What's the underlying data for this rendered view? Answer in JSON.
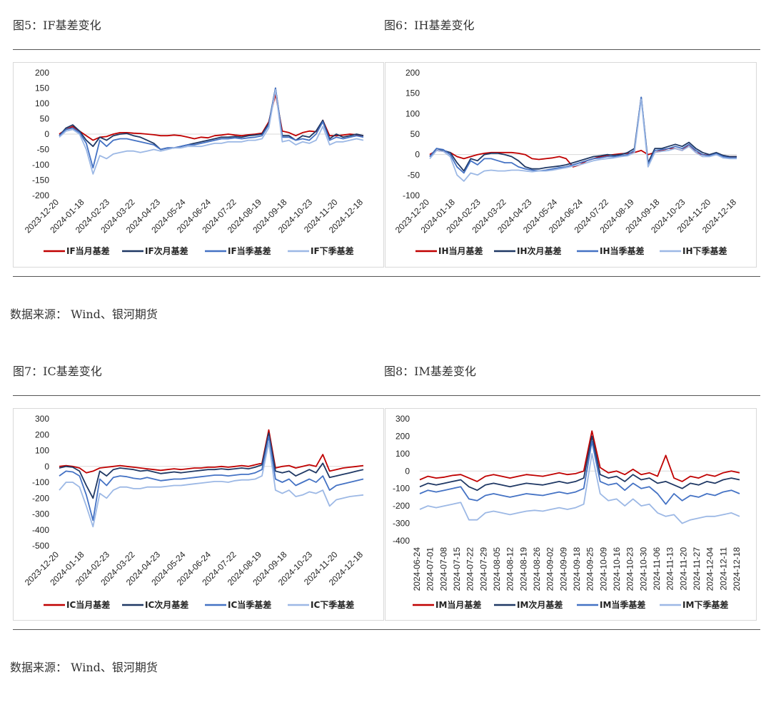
{
  "page": {
    "fig5_title": "图5：IF基差变化",
    "fig6_title": "图6：IH基差变化",
    "fig7_title": "图7：IC基差变化",
    "fig8_title": "图8：IM基差变化",
    "source_1": "数据来源： Wind、银河期货",
    "source_2": "数据来源： Wind、银河期货"
  },
  "chart_data": [
    {
      "id": "IF",
      "type": "line",
      "title": "图5：IF基差变化",
      "ylim": [
        -200,
        200
      ],
      "yticks": [
        "200",
        "150",
        "100",
        "50",
        "0",
        "-50",
        "-100",
        "-150",
        "-200"
      ],
      "xticks": [
        "2023-12-20",
        "2024-01-18",
        "2024-02-23",
        "2024-03-22",
        "2024-04-23",
        "2024-05-24",
        "2024-06-24",
        "2024-07-22",
        "2024-08-19",
        "2024-09-18",
        "2024-10-23",
        "2024-11-20",
        "2024-12-18"
      ],
      "legend": "bottom",
      "series": [
        {
          "name": "IF当月基差",
          "color": "#c00000",
          "values": [
            0,
            15,
            25,
            10,
            -5,
            -20,
            -10,
            -8,
            0,
            5,
            5,
            3,
            2,
            0,
            -2,
            -5,
            -5,
            -3,
            -5,
            -10,
            -15,
            -10,
            -12,
            -5,
            -3,
            0,
            -3,
            -5,
            -2,
            0,
            3,
            40,
            130,
            10,
            5,
            -5,
            5,
            10,
            8,
            45,
            -5,
            -5,
            -3,
            0,
            -2,
            -5
          ]
        },
        {
          "name": "IF次月基差",
          "color": "#1f3864",
          "values": [
            -5,
            20,
            30,
            10,
            -20,
            -40,
            -10,
            -20,
            -5,
            0,
            2,
            -5,
            -10,
            -20,
            -30,
            -50,
            -45,
            -45,
            -40,
            -35,
            -30,
            -25,
            -20,
            -15,
            -10,
            -10,
            -8,
            -10,
            -5,
            -3,
            0,
            35,
            150,
            -5,
            -5,
            -20,
            -5,
            -10,
            10,
            45,
            -15,
            0,
            -10,
            -5,
            0,
            -5
          ]
        },
        {
          "name": "IF当季基差",
          "color": "#4472c4",
          "values": [
            -5,
            15,
            20,
            5,
            -30,
            -110,
            -20,
            -40,
            -20,
            -15,
            -15,
            -20,
            -25,
            -30,
            -35,
            -50,
            -45,
            -45,
            -40,
            -35,
            -35,
            -30,
            -25,
            -20,
            -15,
            -15,
            -12,
            -15,
            -12,
            -10,
            -5,
            30,
            150,
            -10,
            -10,
            -20,
            -15,
            -20,
            0,
            40,
            -20,
            -10,
            -15,
            -10,
            -5,
            -10
          ]
        },
        {
          "name": "IF下季基差",
          "color": "#9cb8e5",
          "values": [
            -10,
            10,
            15,
            0,
            -50,
            -130,
            -70,
            -80,
            -65,
            -60,
            -55,
            -55,
            -60,
            -55,
            -50,
            -55,
            -50,
            -45,
            -45,
            -40,
            -40,
            -40,
            -35,
            -30,
            -30,
            -25,
            -25,
            -25,
            -20,
            -20,
            -15,
            20,
            145,
            -25,
            -20,
            -35,
            -25,
            -30,
            -20,
            25,
            -35,
            -25,
            -25,
            -20,
            -15,
            -20
          ]
        }
      ]
    },
    {
      "id": "IH",
      "type": "line",
      "title": "图6：IH基差变化",
      "ylim": [
        -100,
        200
      ],
      "yticks": [
        "200",
        "150",
        "100",
        "50",
        "0",
        "-50",
        "-100"
      ],
      "xticks": [
        "2023-12-20",
        "2024-01-18",
        "2024-02-23",
        "2024-03-22",
        "2024-04-23",
        "2024-05-24",
        "2024-06-24",
        "2024-07-22",
        "2024-08-19",
        "2024-09-18",
        "2024-10-23",
        "2024-11-20",
        "2024-12-18"
      ],
      "legend": "bottom",
      "series": [
        {
          "name": "IH当月基差",
          "color": "#c00000",
          "values": [
            0,
            10,
            8,
            5,
            -5,
            -10,
            -5,
            0,
            3,
            5,
            5,
            5,
            5,
            3,
            0,
            -10,
            -12,
            -10,
            -8,
            -5,
            -10,
            -30,
            -25,
            -15,
            -10,
            -5,
            -2,
            0,
            2,
            3,
            5,
            10,
            0,
            5,
            10,
            15,
            15,
            10,
            25,
            5,
            0,
            -2,
            0,
            -3,
            -5,
            -5
          ]
        },
        {
          "name": "IH次月基差",
          "color": "#1f3864",
          "values": [
            -5,
            15,
            10,
            5,
            -20,
            -40,
            -10,
            -15,
            0,
            3,
            3,
            0,
            -5,
            -15,
            -30,
            -35,
            -35,
            -32,
            -30,
            -28,
            -25,
            -20,
            -15,
            -10,
            -5,
            -3,
            0,
            -2,
            0,
            5,
            15,
            140,
            -20,
            15,
            15,
            20,
            25,
            20,
            30,
            15,
            5,
            0,
            5,
            -2,
            -5,
            -5
          ]
        },
        {
          "name": "IH当季基差",
          "color": "#4472c4",
          "values": [
            -5,
            15,
            12,
            0,
            -30,
            -45,
            -15,
            -25,
            -10,
            -10,
            -15,
            -20,
            -20,
            -30,
            -35,
            -38,
            -40,
            -38,
            -35,
            -32,
            -30,
            -25,
            -20,
            -15,
            -10,
            -8,
            -5,
            -5,
            -3,
            0,
            10,
            140,
            -25,
            10,
            12,
            15,
            20,
            15,
            25,
            10,
            0,
            -3,
            2,
            -5,
            -8,
            -8
          ]
        },
        {
          "name": "IH下季基差",
          "color": "#9cb8e5",
          "values": [
            -10,
            10,
            8,
            -5,
            -50,
            -65,
            -45,
            -50,
            -40,
            -38,
            -40,
            -40,
            -38,
            -38,
            -40,
            -42,
            -40,
            -40,
            -38,
            -35,
            -32,
            -28,
            -25,
            -20,
            -15,
            -12,
            -10,
            -8,
            -5,
            -3,
            5,
            135,
            -30,
            5,
            8,
            10,
            15,
            10,
            20,
            5,
            -5,
            -5,
            0,
            -8,
            -10,
            -10
          ]
        }
      ]
    },
    {
      "id": "IC",
      "type": "line",
      "title": "图7：IC基差变化",
      "ylim": [
        -500,
        300
      ],
      "yticks": [
        "300",
        "200",
        "100",
        "0",
        "-100",
        "-200",
        "-300",
        "-400",
        "-500"
      ],
      "xticks": [
        "2023-12-20",
        "2024-01-18",
        "2024-02-23",
        "2024-03-22",
        "2024-04-23",
        "2024-05-24",
        "2024-06-24",
        "2024-07-22",
        "2024-08-19",
        "2024-09-18",
        "2024-10-23",
        "2024-11-20",
        "2024-12-18"
      ],
      "legend": "bottom",
      "series": [
        {
          "name": "IC当月基差",
          "color": "#c00000",
          "values": [
            0,
            5,
            0,
            -10,
            -40,
            -30,
            -10,
            -5,
            0,
            5,
            0,
            -5,
            -10,
            -15,
            -20,
            -25,
            -20,
            -15,
            -20,
            -15,
            -10,
            -10,
            -5,
            -5,
            0,
            -5,
            0,
            5,
            0,
            10,
            20,
            230,
            -10,
            0,
            5,
            -10,
            0,
            10,
            0,
            75,
            -30,
            -20,
            -10,
            -5,
            0,
            5
          ]
        },
        {
          "name": "IC次月基差",
          "color": "#1f3864",
          "values": [
            -10,
            0,
            -5,
            -30,
            -120,
            -200,
            -30,
            -60,
            -20,
            -10,
            -15,
            -20,
            -30,
            -25,
            -35,
            -45,
            -40,
            -35,
            -40,
            -35,
            -30,
            -25,
            -20,
            -20,
            -15,
            -20,
            -15,
            -10,
            -15,
            -5,
            10,
            210,
            -30,
            -40,
            -30,
            -60,
            -40,
            -20,
            -40,
            20,
            -70,
            -60,
            -50,
            -40,
            -30,
            -20
          ]
        },
        {
          "name": "IC当季基差",
          "color": "#4472c4",
          "values": [
            -60,
            -30,
            -35,
            -60,
            -180,
            -340,
            -80,
            -120,
            -70,
            -60,
            -65,
            -75,
            -80,
            -70,
            -80,
            -90,
            -85,
            -80,
            -80,
            -75,
            -70,
            -65,
            -60,
            -55,
            -55,
            -60,
            -55,
            -50,
            -50,
            -40,
            -20,
            190,
            -80,
            -100,
            -80,
            -120,
            -100,
            -80,
            -100,
            -60,
            -150,
            -120,
            -110,
            -100,
            -90,
            -80
          ]
        },
        {
          "name": "IC下季基差",
          "color": "#9cb8e5",
          "values": [
            -150,
            -100,
            -100,
            -130,
            -250,
            -380,
            -170,
            -200,
            -150,
            -130,
            -130,
            -140,
            -140,
            -130,
            -130,
            -130,
            -125,
            -120,
            -120,
            -115,
            -110,
            -105,
            -100,
            -95,
            -95,
            -100,
            -90,
            -85,
            -85,
            -80,
            -60,
            150,
            -150,
            -170,
            -150,
            -190,
            -180,
            -160,
            -170,
            -150,
            -250,
            -210,
            -200,
            -190,
            -185,
            -180
          ]
        }
      ]
    },
    {
      "id": "IM",
      "type": "line",
      "title": "图8：IM基差变化",
      "ylim": [
        -400,
        300
      ],
      "yticks": [
        "300",
        "200",
        "100",
        "0",
        "-100",
        "-200",
        "-300",
        "-400"
      ],
      "xticks": [
        "2024-06-24",
        "2024-07-01",
        "2024-07-08",
        "2024-07-15",
        "2024-07-22",
        "2024-07-29",
        "2024-08-05",
        "2024-08-12",
        "2024-08-19",
        "2024-08-26",
        "2024-09-02",
        "2024-09-09",
        "2024-09-18",
        "2024-09-25",
        "2024-10-09",
        "2024-10-16",
        "2024-10-23",
        "2024-10-30",
        "2024-11-06",
        "2024-11-13",
        "2024-11-20",
        "2024-11-27",
        "2024-12-04",
        "2024-12-11",
        "2024-12-18"
      ],
      "legend": "bottom",
      "series": [
        {
          "name": "IM当月基差",
          "color": "#c00000",
          "values": [
            -50,
            -30,
            -40,
            -35,
            -25,
            -20,
            -40,
            -60,
            -30,
            -20,
            -30,
            -40,
            -30,
            -20,
            -25,
            -30,
            -20,
            -10,
            -20,
            -15,
            0,
            230,
            20,
            -10,
            0,
            -20,
            10,
            -20,
            -10,
            -30,
            90,
            -40,
            -60,
            -30,
            -40,
            -20,
            -30,
            -10,
            0,
            -10
          ]
        },
        {
          "name": "IM次月基差",
          "color": "#1f3864",
          "values": [
            -90,
            -70,
            -80,
            -70,
            -60,
            -50,
            -90,
            -110,
            -80,
            -70,
            -80,
            -90,
            -80,
            -70,
            -75,
            -80,
            -70,
            -60,
            -70,
            -60,
            -40,
            200,
            -20,
            -40,
            -30,
            -60,
            -20,
            -50,
            -40,
            -70,
            -60,
            -80,
            -100,
            -70,
            -80,
            -60,
            -70,
            -50,
            -40,
            -50
          ]
        },
        {
          "name": "IM当季基差",
          "color": "#4472c4",
          "values": [
            -130,
            -110,
            -120,
            -110,
            -100,
            -90,
            -160,
            -170,
            -140,
            -130,
            -140,
            -150,
            -140,
            -130,
            -135,
            -140,
            -130,
            -120,
            -130,
            -120,
            -100,
            170,
            -60,
            -80,
            -70,
            -110,
            -70,
            -100,
            -90,
            -130,
            -190,
            -130,
            -170,
            -140,
            -150,
            -130,
            -140,
            -120,
            -110,
            -130
          ]
        },
        {
          "name": "IM下季基差",
          "color": "#9cb8e5",
          "values": [
            -220,
            -200,
            -210,
            -200,
            -190,
            -180,
            -280,
            -280,
            -240,
            -230,
            -240,
            -250,
            -240,
            -230,
            -225,
            -230,
            -220,
            -210,
            -220,
            -210,
            -190,
            100,
            -130,
            -170,
            -160,
            -200,
            -160,
            -200,
            -190,
            -240,
            -260,
            -250,
            -300,
            -280,
            -270,
            -260,
            -260,
            -250,
            -240,
            -260
          ]
        }
      ]
    }
  ]
}
